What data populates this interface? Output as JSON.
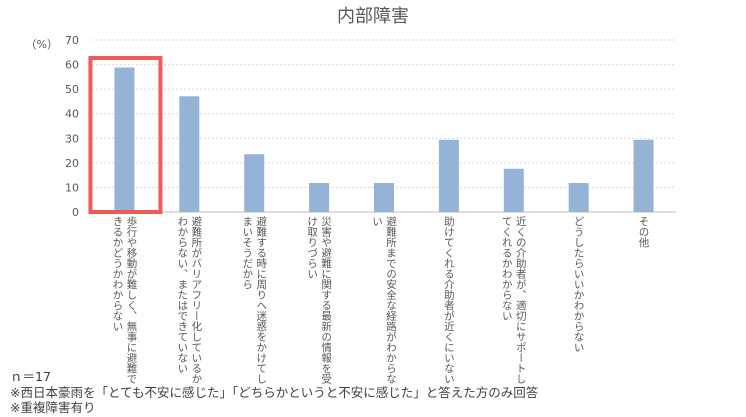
{
  "chart_data": {
    "type": "bar",
    "title": "内部障害",
    "ylabel": "（%）",
    "ylim": [
      0,
      70
    ],
    "yticks": [
      0,
      10,
      20,
      30,
      40,
      50,
      60,
      70
    ],
    "grid": true,
    "categories": [
      [
        "歩行や移動が難しく、無事に避難で",
        "きるかどうかわからない"
      ],
      [
        "避難所がバリアフリー化しているか",
        "わからない、またはできていない"
      ],
      [
        "避難する時に周りへ迷惑をかけてし",
        "まいそうだから"
      ],
      [
        "災害や避難に関する最新の情報を受",
        "け取りづらい"
      ],
      [
        "避難所までの安全な経路がわからな",
        "い"
      ],
      [
        "助けてくれる介助者が近くにいない"
      ],
      [
        "近くの介助者が、適切にサポートし",
        "てくれるかわからない"
      ],
      [
        "どうしたらいいかわからない"
      ],
      [
        "その他"
      ]
    ],
    "values": [
      58.8,
      47.1,
      23.5,
      11.8,
      11.8,
      29.4,
      17.6,
      11.8,
      29.4
    ],
    "highlighted_index": 0,
    "bar_color": "#95b3d7",
    "highlight_color": "#f05a5a"
  },
  "notes": {
    "n": "ｎ＝17",
    "note1": "※西日本豪雨を「とても不安に感じた」「どちらかというと不安に感じた」と答えた方のみ回答",
    "note2": "※重複障害有り"
  }
}
